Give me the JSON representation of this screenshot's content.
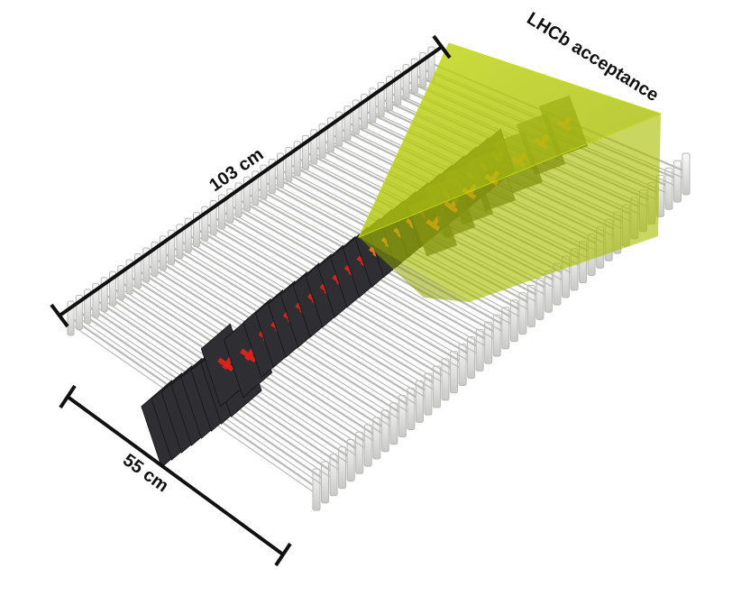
{
  "labels": {
    "acceptance": "LHCb acceptance",
    "length_long": "103 cm",
    "length_short": "55 cm"
  },
  "colors": {
    "acceptance_fill": "#b5cc00",
    "acceptance_edge": "#c9de1a",
    "module_dark": "#2e2e33",
    "sensor_red": "#d4241c",
    "sensor_orange": "#e8742a",
    "frame_light": "#ededeb",
    "frame_edge": "#b9b9b6",
    "dimension_line": "#111111"
  },
  "icons": {
    "detector": "velo-module-array-illustration"
  }
}
